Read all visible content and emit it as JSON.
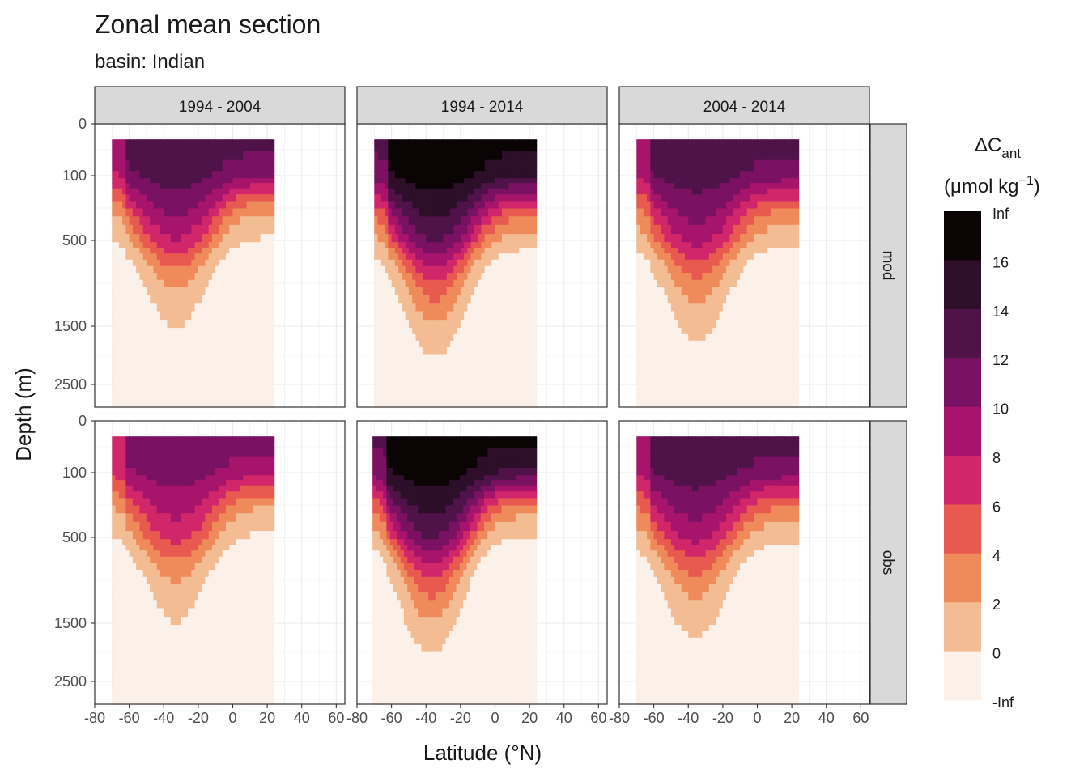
{
  "chart_data": {
    "type": "heatmap",
    "title": "Zonal mean section",
    "subtitle": "basin: Indian",
    "xlabel": "Latitude (°N)",
    "ylabel": "Depth (m)",
    "x_ticks": [
      "-80",
      "-60",
      "-40",
      "-20",
      "0",
      "20",
      "40",
      "60"
    ],
    "x_tick_values": [
      -80,
      -60,
      -40,
      -20,
      0,
      20,
      40,
      60
    ],
    "y_ticks": [
      "0",
      "100",
      "500",
      "1500",
      "2500"
    ],
    "y_tick_values": [
      0,
      100,
      500,
      1500,
      2500
    ],
    "xlim": [
      -80,
      65
    ],
    "ylim_depth": [
      0,
      3000
    ],
    "columns": [
      "1994 - 2004",
      "1994 - 2014",
      "2004 - 2014"
    ],
    "rows": [
      "mod",
      "obs"
    ],
    "legend": {
      "title_main": "ΔC",
      "title_sub": "ant",
      "units": "(μmol kg",
      "units_sup": "−1",
      "units_close": ")",
      "labels": [
        "Inf",
        "16",
        "14",
        "12",
        "10",
        "8",
        "6",
        "4",
        "2",
        "0",
        "-Inf"
      ],
      "colors": [
        "#0b0405",
        "#2d0f2a",
        "#4f1249",
        "#7a1162",
        "#a6146c",
        "#d1266a",
        "#e85a4f",
        "#ef8a5a",
        "#f3bc93",
        "#fcf1e8"
      ]
    },
    "panels": [
      {
        "row": "mod",
        "col": "1994 - 2004",
        "lat_range": [
          -70,
          24
        ],
        "trough_lat": -33,
        "trough_depth": 800,
        "shoal_depth": 250,
        "peak_bin": 7
      },
      {
        "row": "mod",
        "col": "1994 - 2014",
        "lat_range": [
          -70,
          24
        ],
        "trough_lat": -35,
        "trough_depth": 1000,
        "shoal_depth": 300,
        "peak_bin": 9
      },
      {
        "row": "mod",
        "col": "2004 - 2014",
        "lat_range": [
          -70,
          24
        ],
        "trough_lat": -35,
        "trough_depth": 900,
        "shoal_depth": 300,
        "peak_bin": 7
      },
      {
        "row": "obs",
        "col": "1994 - 2004",
        "lat_range": [
          -70,
          24
        ],
        "trough_lat": -33,
        "trough_depth": 800,
        "shoal_depth": 250,
        "peak_bin": 6
      },
      {
        "row": "obs",
        "col": "1994 - 2014",
        "lat_range": [
          -71,
          24
        ],
        "trough_lat": -37,
        "trough_depth": 1000,
        "shoal_depth": 250,
        "peak_bin": 9
      },
      {
        "row": "obs",
        "col": "2004 - 2014",
        "lat_range": [
          -70,
          24
        ],
        "trough_lat": -36,
        "trough_depth": 900,
        "shoal_depth": 300,
        "peak_bin": 7
      }
    ]
  }
}
